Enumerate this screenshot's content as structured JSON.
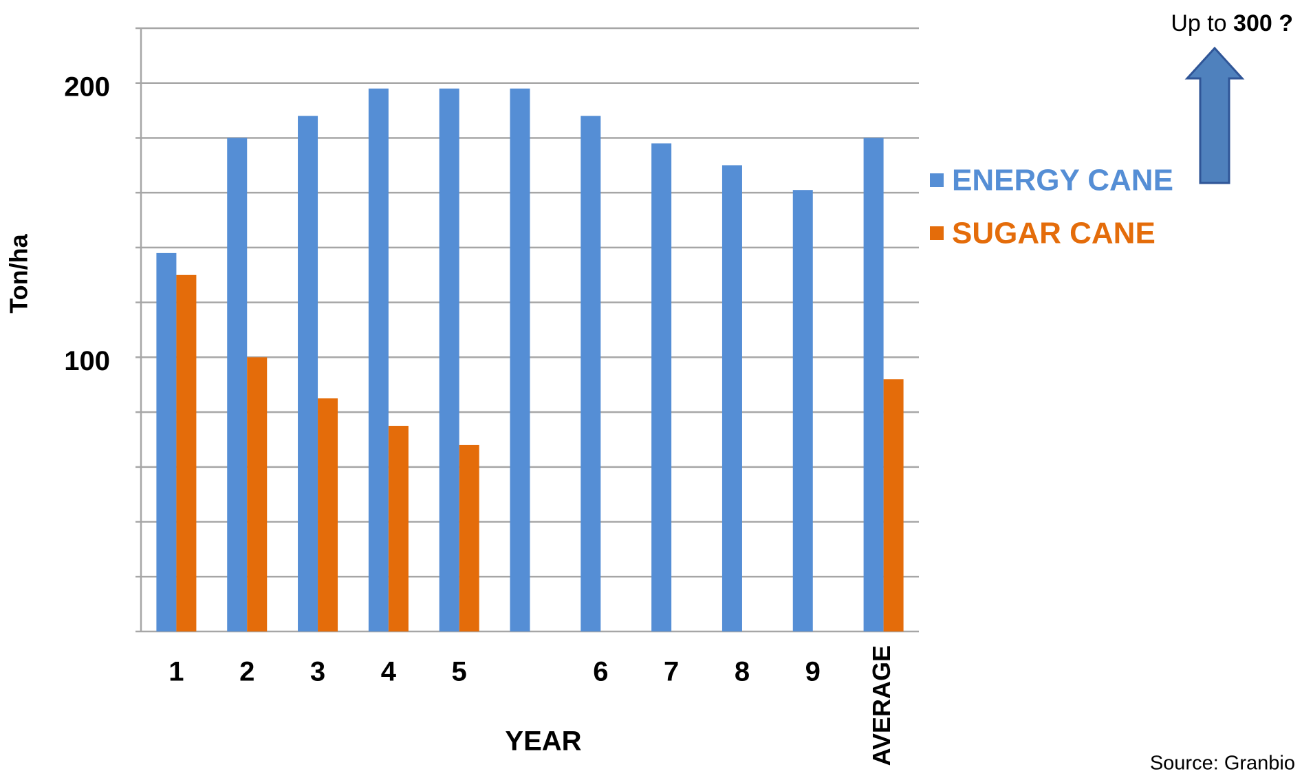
{
  "chart_data": {
    "type": "bar",
    "categories": [
      "1",
      "2",
      "3",
      "4",
      "5",
      null,
      "6",
      "7",
      "8",
      "9",
      "AVERAGE"
    ],
    "series": [
      {
        "name": "ENERGY CANE",
        "color": "#558ed5",
        "values": [
          138,
          180,
          188,
          198,
          198,
          198,
          188,
          178,
          170,
          161,
          180
        ]
      },
      {
        "name": "SUGAR CANE",
        "color": "#e46c0a",
        "values": [
          130,
          100,
          85,
          75,
          68,
          null,
          null,
          null,
          null,
          null,
          92
        ]
      }
    ],
    "ylim": [
      0,
      220
    ],
    "yticks": [
      100,
      200
    ],
    "ygrid": [
      0,
      20,
      40,
      60,
      80,
      100,
      120,
      140,
      160,
      180,
      200,
      220
    ],
    "grid": true,
    "legend": "right",
    "xlabel": "YEAR",
    "ylabel": "Ton/ha",
    "annotation": [
      "Up to",
      "300 ?"
    ],
    "source": "Source: Granbio"
  }
}
